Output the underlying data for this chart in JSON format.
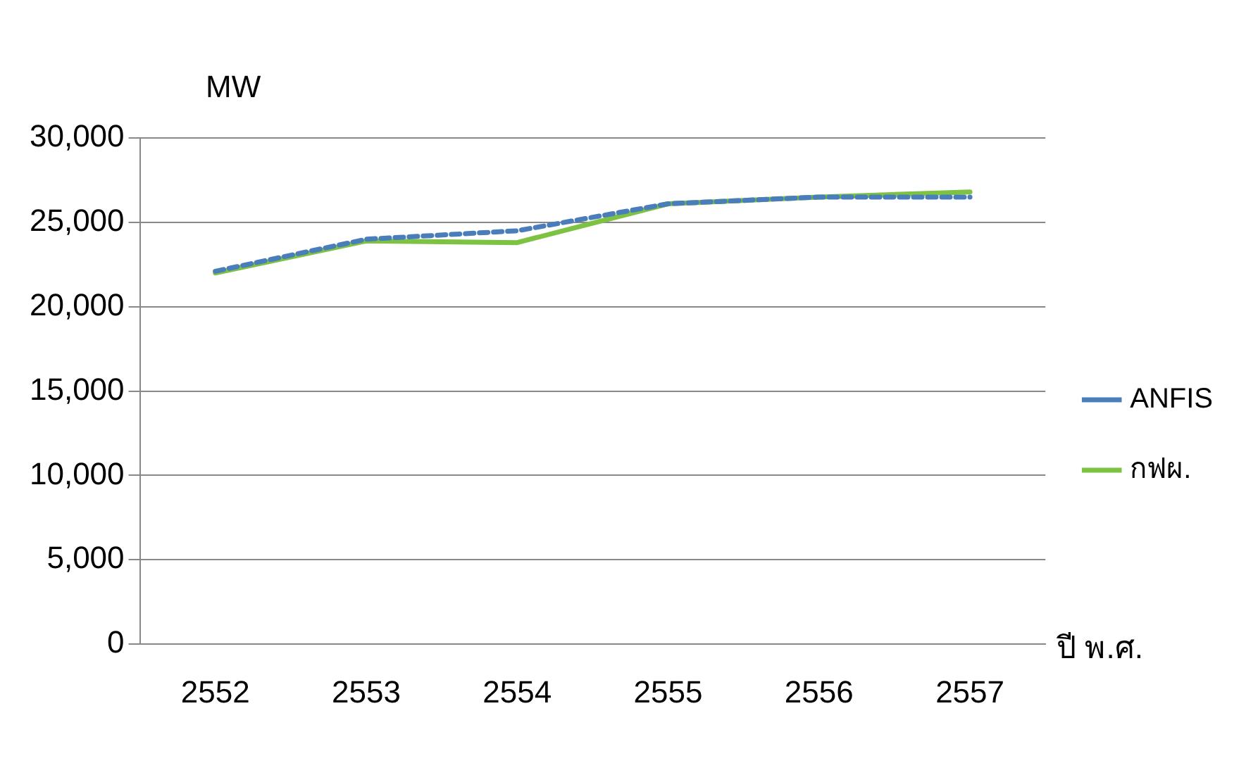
{
  "chart_data": {
    "type": "line",
    "ylabel": "MW",
    "xlabel": "ปี พ.ศ.",
    "categories": [
      "2552",
      "2553",
      "2554",
      "2555",
      "2556",
      "2557"
    ],
    "series": [
      {
        "name": "ANFIS",
        "color": "#4a7ebb",
        "line_style": "dashed",
        "values": [
          22100,
          24000,
          24500,
          26100,
          26500,
          26500
        ]
      },
      {
        "name": "กฟผ.",
        "color": "#7dc242",
        "line_style": "solid",
        "values": [
          22000,
          23900,
          23800,
          26100,
          26500,
          26800
        ]
      }
    ],
    "ylim": [
      0,
      30000
    ],
    "yticks": [
      0,
      {
        "value": 5000,
        "label": "5,000"
      },
      {
        "value": 10000,
        "label": "10,000"
      },
      {
        "value": 15000,
        "label": "15,000"
      },
      {
        "value": 20000,
        "label": "20,000"
      },
      {
        "value": 25000,
        "label": "25,000"
      },
      {
        "value": 30000,
        "label": "30,000"
      }
    ],
    "grid": "y",
    "legend": "right",
    "marker": "none"
  }
}
